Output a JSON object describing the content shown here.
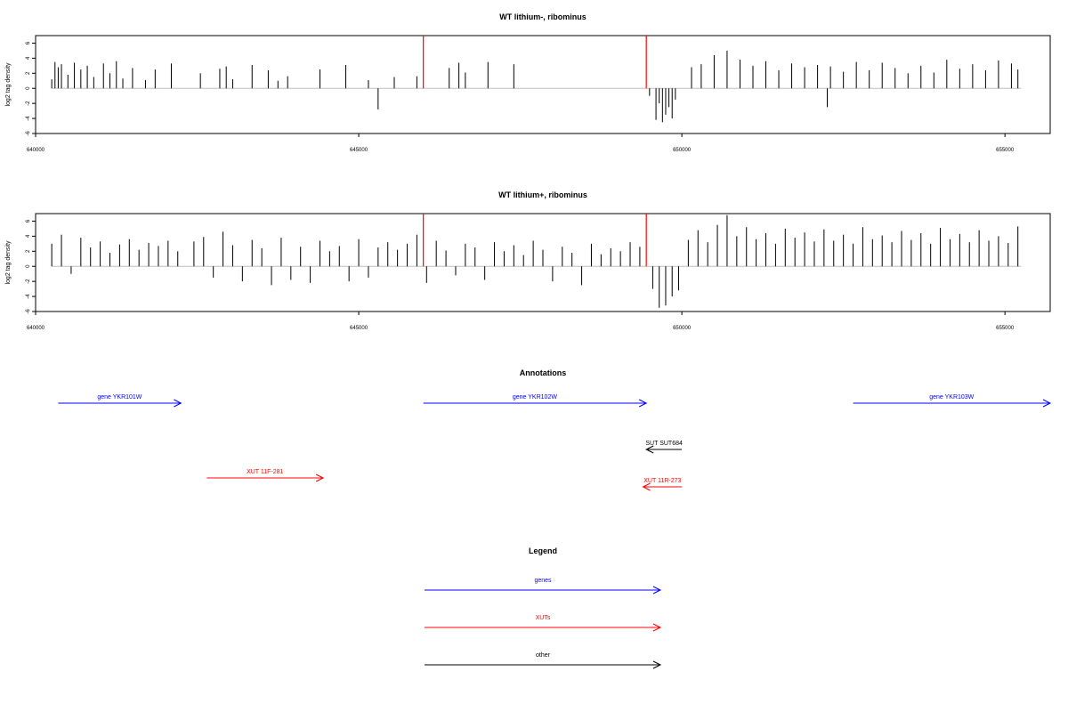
{
  "colors": {
    "blue": "#0000ff",
    "red": "#ff0000",
    "black": "#000000",
    "axis": "#000000",
    "baseline": "#bebebe"
  },
  "chart_data": [
    {
      "type": "bar",
      "title": "WT lithium-, ribominus",
      "ylabel": "log2 tag density",
      "xlim": [
        640000,
        655700
      ],
      "ylim": [
        -6,
        7
      ],
      "xticks": [
        640000,
        645000,
        650000,
        655000
      ],
      "xtick_labels": [
        "640000",
        "645000",
        "650000",
        "655000"
      ],
      "yticks": [
        -6,
        -4,
        -2,
        0,
        2,
        4,
        6
      ],
      "ytick_labels": [
        "-6",
        "-4",
        "-2",
        "0",
        "2",
        "4",
        "6"
      ],
      "data_range": [
        640250,
        655250
      ],
      "markers": [
        646000,
        649450
      ],
      "series": [
        {
          "x": [
            640250,
            640300,
            640350,
            640400,
            640500,
            640600,
            640700,
            640800,
            640900,
            641050,
            641150,
            641250,
            641350,
            641500,
            641700,
            641850,
            642100,
            642550,
            642850,
            642950,
            643050,
            643350,
            643600,
            643750,
            643900,
            644400,
            644800,
            645150,
            645300,
            645550,
            645900,
            646400,
            646550,
            646650,
            647000,
            647400,
            649500,
            649600,
            649650,
            649700,
            649750,
            649800,
            649850,
            649900,
            650150,
            650300,
            650500,
            650700,
            650900,
            651100,
            651300,
            651500,
            651700,
            651900,
            652100,
            652250,
            652300,
            652500,
            652700,
            652900,
            653100,
            653300,
            653500,
            653700,
            653900,
            654100,
            654300,
            654500,
            654700,
            654900,
            655100,
            655200
          ],
          "values": [
            1.2,
            3.5,
            2.8,
            3.2,
            1.8,
            3.4,
            2.5,
            3.0,
            1.5,
            3.3,
            2.0,
            3.6,
            1.3,
            2.7,
            1.1,
            2.5,
            3.3,
            2.0,
            2.6,
            2.9,
            1.2,
            3.1,
            2.4,
            1.0,
            1.6,
            2.5,
            3.1,
            1.1,
            -2.8,
            1.5,
            1.6,
            2.7,
            3.4,
            2.1,
            3.5,
            3.2,
            -1.0,
            -4.2,
            -2.0,
            -4.5,
            -3.5,
            -2.5,
            -4.0,
            -1.5,
            2.8,
            3.2,
            4.4,
            5.0,
            3.8,
            3.0,
            3.6,
            2.4,
            3.3,
            2.8,
            3.1,
            -2.5,
            2.9,
            2.2,
            3.5,
            2.4,
            3.4,
            2.7,
            2.0,
            3.0,
            2.1,
            3.8,
            2.6,
            3.2,
            2.4,
            3.7,
            3.3,
            2.5
          ]
        }
      ]
    },
    {
      "type": "bar",
      "title": "WT lithium+, ribominus",
      "ylabel": "log2 tag density",
      "xlim": [
        640000,
        655700
      ],
      "ylim": [
        -6,
        7
      ],
      "xticks": [
        640000,
        645000,
        650000,
        655000
      ],
      "xtick_labels": [
        "640000",
        "645000",
        "650000",
        "655000"
      ],
      "yticks": [
        -6,
        -4,
        -2,
        0,
        2,
        4,
        6
      ],
      "ytick_labels": [
        "-6",
        "-4",
        "-2",
        "0",
        "2",
        "4",
        "6"
      ],
      "data_range": [
        640250,
        655250
      ],
      "markers": [
        646000,
        649450
      ],
      "series": [
        {
          "x": [
            640250,
            640400,
            640550,
            640700,
            640850,
            641000,
            641150,
            641300,
            641450,
            641600,
            641750,
            641900,
            642050,
            642200,
            642450,
            642600,
            642750,
            642900,
            643050,
            643200,
            643350,
            643500,
            643650,
            643800,
            643950,
            644100,
            644250,
            644400,
            644550,
            644700,
            644850,
            645000,
            645150,
            645300,
            645450,
            645600,
            645750,
            645900,
            646050,
            646200,
            646350,
            646500,
            646650,
            646800,
            646950,
            647100,
            647250,
            647400,
            647550,
            647700,
            647850,
            648000,
            648150,
            648300,
            648450,
            648600,
            648750,
            648900,
            649050,
            649200,
            649350,
            649550,
            649650,
            649750,
            649850,
            649950,
            650100,
            650250,
            650400,
            650550,
            650700,
            650850,
            651000,
            651150,
            651300,
            651450,
            651600,
            651750,
            651900,
            652050,
            652200,
            652350,
            652500,
            652650,
            652800,
            652950,
            653100,
            653250,
            653400,
            653550,
            653700,
            653850,
            654000,
            654150,
            654300,
            654450,
            654600,
            654750,
            654900,
            655050,
            655200
          ],
          "values": [
            3.0,
            4.2,
            -1.0,
            3.8,
            2.5,
            3.3,
            1.8,
            2.9,
            3.6,
            2.2,
            3.1,
            2.7,
            3.4,
            2.0,
            3.3,
            3.9,
            -1.5,
            4.6,
            2.8,
            -2.0,
            3.5,
            2.4,
            -2.5,
            3.8,
            -1.8,
            2.6,
            -2.2,
            3.4,
            2.0,
            2.7,
            -2.0,
            3.6,
            -1.5,
            2.5,
            3.2,
            2.2,
            3.0,
            4.2,
            -2.2,
            3.4,
            2.1,
            -1.2,
            3.0,
            2.5,
            -1.8,
            3.2,
            2.0,
            2.8,
            1.5,
            3.4,
            2.2,
            -2.0,
            2.6,
            1.8,
            -2.5,
            3.0,
            1.6,
            2.4,
            2.0,
            3.2,
            2.6,
            -3.0,
            -5.5,
            -5.2,
            -4.0,
            -3.2,
            3.5,
            4.8,
            3.2,
            5.5,
            6.8,
            4.0,
            5.2,
            3.6,
            4.4,
            3.0,
            5.0,
            3.8,
            4.5,
            3.3,
            4.9,
            3.4,
            4.2,
            3.0,
            5.2,
            3.6,
            4.1,
            3.2,
            4.7,
            3.5,
            4.4,
            3.0,
            5.1,
            3.6,
            4.3,
            3.2,
            4.8,
            3.4,
            4.0,
            3.1,
            5.3
          ]
        }
      ]
    }
  ],
  "annotations": {
    "title": "Annotations",
    "features": [
      {
        "label": "gene YKR101W",
        "kind": "genes",
        "strand": "+",
        "start": 640350,
        "end": 642250
      },
      {
        "label": "gene YKR102W",
        "kind": "genes",
        "strand": "+",
        "start": 646000,
        "end": 649450
      },
      {
        "label": "gene YKR103W",
        "kind": "genes",
        "strand": "+",
        "start": 652650,
        "end": 655700
      },
      {
        "label": "SUT SUT684",
        "kind": "other",
        "strand": "-",
        "start": 649450,
        "end": 650000
      },
      {
        "label": "XUT 11F-281",
        "kind": "XUTs",
        "strand": "+",
        "start": 642650,
        "end": 644450
      },
      {
        "label": "XUT 11R-273",
        "kind": "XUTs",
        "strand": "-",
        "start": 649400,
        "end": 650000
      }
    ]
  },
  "legend": {
    "title": "Legend",
    "entries": [
      {
        "label": "genes",
        "kind": "genes"
      },
      {
        "label": "XUTs",
        "kind": "XUTs"
      },
      {
        "label": "other",
        "kind": "other"
      }
    ]
  }
}
